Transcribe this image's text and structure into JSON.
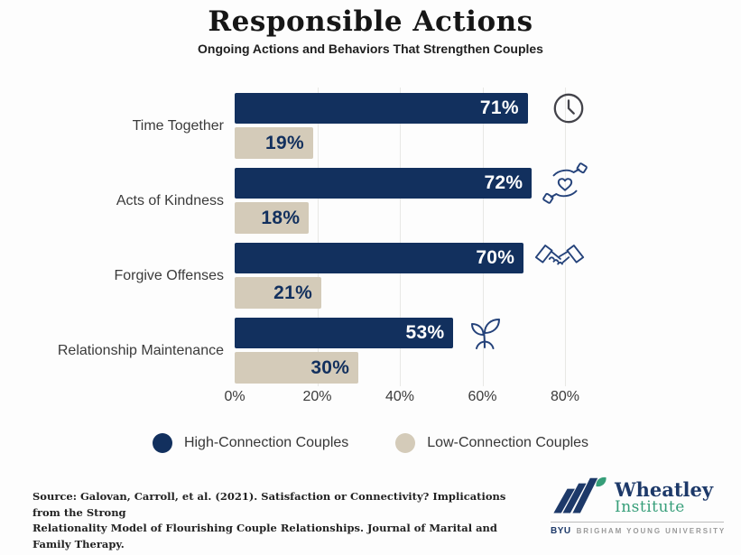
{
  "header": {
    "title": "Responsible Actions",
    "subtitle": "Ongoing Actions and Behaviors That Strengthen Couples"
  },
  "chart_data": {
    "type": "bar",
    "orientation": "horizontal",
    "title": "Responsible Actions",
    "subtitle": "Ongoing Actions and Behaviors That Strengthen Couples",
    "categories": [
      "Time Together",
      "Acts of Kindness",
      "Forgive Offenses",
      "Relationship Maintenance"
    ],
    "series": [
      {
        "name": "High-Connection Couples",
        "color": "#12305e",
        "values": [
          71,
          72,
          70,
          53
        ]
      },
      {
        "name": "Low-Connection Couples",
        "color": "#d4cbb9",
        "values": [
          19,
          18,
          21,
          30
        ]
      }
    ],
    "value_suffix": "%",
    "x_ticks": [
      "0%",
      "20%",
      "40%",
      "60%",
      "80%"
    ],
    "x_tick_values": [
      0,
      20,
      40,
      60,
      80
    ],
    "xlim": [
      0,
      88
    ],
    "grid": true,
    "gridline_color": "#e8e8e5",
    "row_icons": [
      "clock-icon",
      "hands-heart-icon",
      "handshake-icon",
      "sprout-icon"
    ],
    "legend_position": "bottom"
  },
  "legend": {
    "items": [
      {
        "label": "High-Connection Couples",
        "color": "#12305e"
      },
      {
        "label": "Low-Connection Couples",
        "color": "#d4cbb9"
      }
    ]
  },
  "footer": {
    "source_line1": "Source: Galovan, Carroll, et al. (2021). Satisfaction or Connectivity? Implications from the Strong",
    "source_line2": "Relationality Model of Flourishing Couple Relationships. Journal of Marital and Family Therapy.",
    "logo": {
      "name": "Wheatley",
      "name2": "Institute",
      "byu": "BYU",
      "university": "BRIGHAM YOUNG UNIVERSITY",
      "navy": "#1d3969",
      "green": "#369e79"
    }
  }
}
